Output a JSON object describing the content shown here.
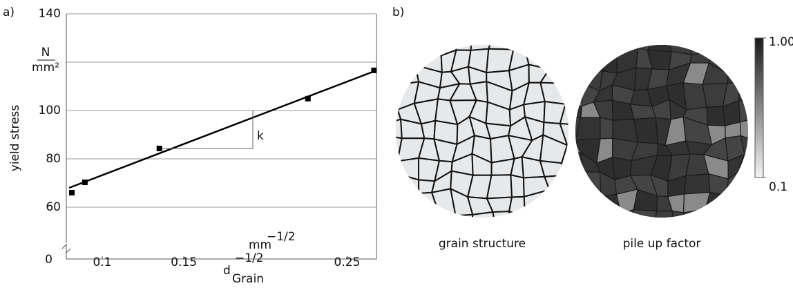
{
  "chart_data": [
    {
      "type": "scatter",
      "panel_label": "a)",
      "y_label": "yield stress",
      "y_unit_numerator": "N",
      "y_unit_denominator": "mm²",
      "x_label": "d",
      "x_label_subscript": "Grain",
      "x_label_exponent": "−1/2",
      "x_unit": "mm",
      "x_unit_exponent": "−1/2",
      "axis_break_label": "0",
      "x": [
        0.0814,
        0.0894,
        0.135,
        0.226,
        0.2665
      ],
      "values": [
        66.0,
        70.3,
        84.3,
        104.9,
        116.6
      ],
      "color": "#000000",
      "fit": {
        "x": [
          0.0797,
          0.268
        ],
        "y": [
          68,
          116.6
        ]
      },
      "slope_label": "k",
      "xlim": [
        0.078,
        0.268
      ],
      "ylim": [
        60,
        140
      ],
      "xticks": [
        0.1,
        0.15,
        0.25
      ],
      "yticks": [
        60,
        80,
        100,
        {
          "value": 120,
          "label": ""
        },
        140
      ],
      "grid": true
    },
    {
      "type": "image",
      "panel_label": "b)",
      "images": [
        {
          "label": "grain structure"
        },
        {
          "label": "pile up factor"
        }
      ],
      "colorbar": {
        "lim": [
          0.1,
          1.0
        ],
        "ticks": [
          {
            "value": 1.0,
            "label": "1.00"
          },
          {
            "value": 0.1,
            "label": "0.1"
          }
        ]
      }
    }
  ]
}
